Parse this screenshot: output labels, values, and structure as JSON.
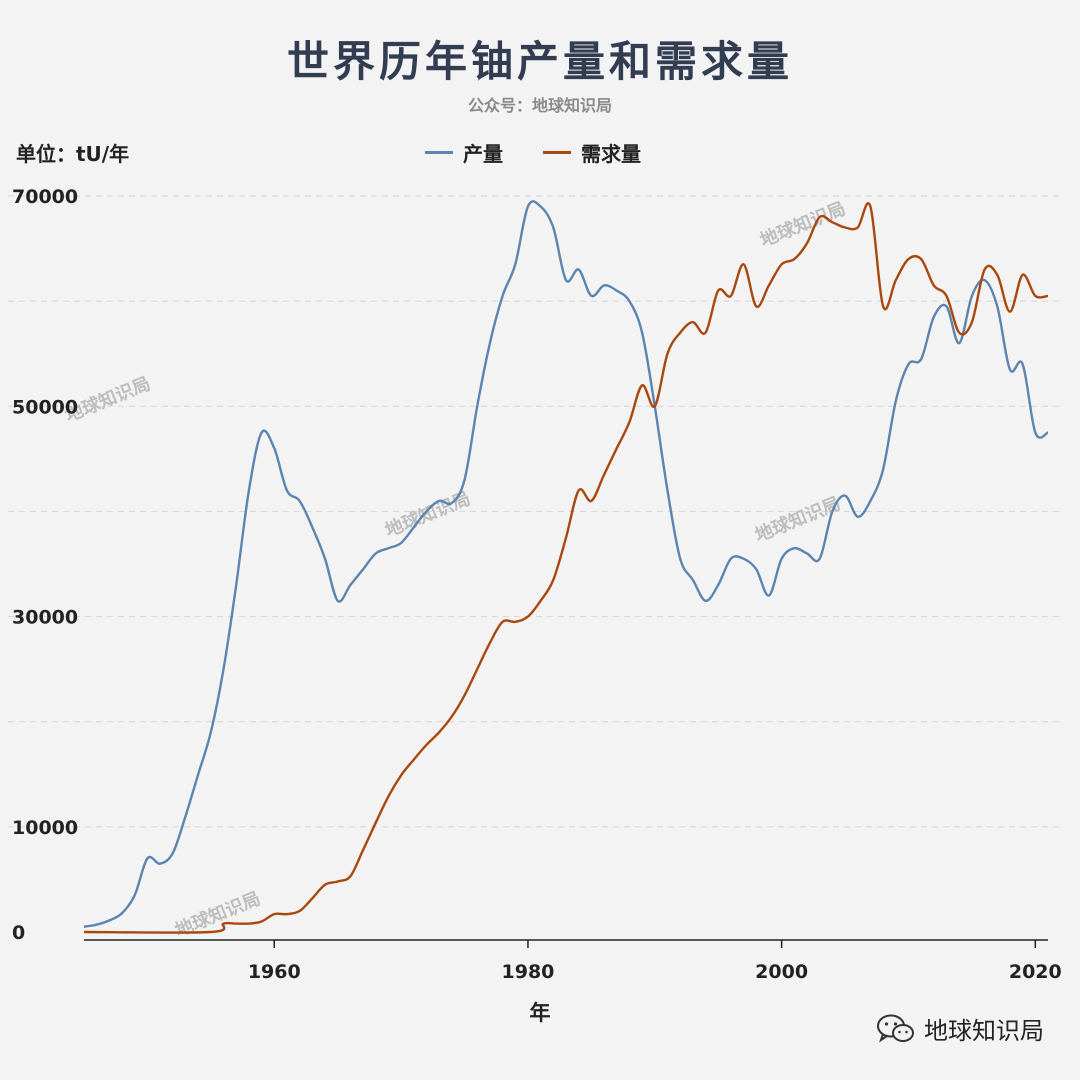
{
  "header": {
    "title": "世界历年铀产量和需求量",
    "subtitle": "公众号：地球知识局",
    "unit": "单位：tU/年"
  },
  "legend": [
    {
      "name": "产量",
      "color": "#5b85b0"
    },
    {
      "name": "需求量",
      "color": "#a8480f"
    }
  ],
  "watermark": "地球知识局",
  "footer": {
    "brand": "地球知识局",
    "icon": "wechat-icon"
  },
  "chart_data": {
    "type": "line",
    "title": "世界历年铀产量和需求量",
    "xlabel": "年",
    "ylabel": "单位：tU/年",
    "xlim": [
      1945,
      2021
    ],
    "ylim": [
      0,
      70000
    ],
    "grid": true,
    "legend_position": "top-center",
    "x_ticks": [
      1960,
      1980,
      2000,
      2020
    ],
    "y_ticks": [
      0,
      10000,
      30000,
      50000,
      70000
    ],
    "series": [
      {
        "name": "产量",
        "color": "#5b85b0",
        "points": [
          [
            1945,
            500
          ],
          [
            1946,
            700
          ],
          [
            1947,
            1100
          ],
          [
            1948,
            1800
          ],
          [
            1949,
            3500
          ],
          [
            1950,
            7000
          ],
          [
            1951,
            6500
          ],
          [
            1952,
            7500
          ],
          [
            1953,
            11000
          ],
          [
            1954,
            15000
          ],
          [
            1955,
            19000
          ],
          [
            1956,
            25000
          ],
          [
            1957,
            33000
          ],
          [
            1958,
            42000
          ],
          [
            1959,
            47500
          ],
          [
            1960,
            46000
          ],
          [
            1961,
            42000
          ],
          [
            1962,
            41000
          ],
          [
            1963,
            38500
          ],
          [
            1964,
            35500
          ],
          [
            1965,
            31500
          ],
          [
            1966,
            33000
          ],
          [
            1967,
            34500
          ],
          [
            1968,
            36000
          ],
          [
            1969,
            36500
          ],
          [
            1970,
            37000
          ],
          [
            1971,
            38500
          ],
          [
            1972,
            40000
          ],
          [
            1973,
            41000
          ],
          [
            1974,
            40800
          ],
          [
            1975,
            43000
          ],
          [
            1976,
            50000
          ],
          [
            1977,
            56000
          ],
          [
            1978,
            60500
          ],
          [
            1979,
            63500
          ],
          [
            1980,
            69000
          ],
          [
            1981,
            69000
          ],
          [
            1982,
            67000
          ],
          [
            1983,
            62000
          ],
          [
            1984,
            63000
          ],
          [
            1985,
            60500
          ],
          [
            1986,
            61500
          ],
          [
            1987,
            61000
          ],
          [
            1988,
            60000
          ],
          [
            1989,
            57000
          ],
          [
            1990,
            50000
          ],
          [
            1991,
            42000
          ],
          [
            1992,
            35500
          ],
          [
            1993,
            33500
          ],
          [
            1994,
            31500
          ],
          [
            1995,
            33000
          ],
          [
            1996,
            35500
          ],
          [
            1997,
            35500
          ],
          [
            1998,
            34500
          ],
          [
            1999,
            32000
          ],
          [
            2000,
            35500
          ],
          [
            2001,
            36500
          ],
          [
            2002,
            36000
          ],
          [
            2003,
            35500
          ],
          [
            2004,
            40000
          ],
          [
            2005,
            41500
          ],
          [
            2006,
            39500
          ],
          [
            2007,
            41000
          ],
          [
            2008,
            44000
          ],
          [
            2009,
            50500
          ],
          [
            2010,
            54000
          ],
          [
            2011,
            54500
          ],
          [
            2012,
            58500
          ],
          [
            2013,
            59500
          ],
          [
            2014,
            56000
          ],
          [
            2015,
            60500
          ],
          [
            2016,
            62000
          ],
          [
            2017,
            59500
          ],
          [
            2018,
            53500
          ],
          [
            2019,
            54000
          ],
          [
            2020,
            47500
          ],
          [
            2021,
            47500
          ]
        ]
      },
      {
        "name": "需求量",
        "color": "#a8480f",
        "points": [
          [
            1945,
            0
          ],
          [
            1955,
            0
          ],
          [
            1956,
            800
          ],
          [
            1957,
            800
          ],
          [
            1958,
            800
          ],
          [
            1959,
            1000
          ],
          [
            1960,
            1700
          ],
          [
            1961,
            1700
          ],
          [
            1962,
            2000
          ],
          [
            1963,
            3200
          ],
          [
            1964,
            4500
          ],
          [
            1965,
            4800
          ],
          [
            1966,
            5300
          ],
          [
            1967,
            7800
          ],
          [
            1968,
            10400
          ],
          [
            1969,
            12900
          ],
          [
            1970,
            14900
          ],
          [
            1971,
            16400
          ],
          [
            1972,
            17800
          ],
          [
            1973,
            19000
          ],
          [
            1974,
            20500
          ],
          [
            1975,
            22500
          ],
          [
            1976,
            25000
          ],
          [
            1977,
            27500
          ],
          [
            1978,
            29500
          ],
          [
            1979,
            29500
          ],
          [
            1980,
            30000
          ],
          [
            1981,
            31500
          ],
          [
            1982,
            33500
          ],
          [
            1983,
            37500
          ],
          [
            1984,
            42000
          ],
          [
            1985,
            41000
          ],
          [
            1986,
            43500
          ],
          [
            1987,
            46000
          ],
          [
            1988,
            48500
          ],
          [
            1989,
            52000
          ],
          [
            1990,
            50000
          ],
          [
            1991,
            55000
          ],
          [
            1992,
            57000
          ],
          [
            1993,
            58000
          ],
          [
            1994,
            57000
          ],
          [
            1995,
            61000
          ],
          [
            1996,
            60500
          ],
          [
            1997,
            63500
          ],
          [
            1998,
            59500
          ],
          [
            1999,
            61500
          ],
          [
            2000,
            63500
          ],
          [
            2001,
            64000
          ],
          [
            2002,
            65500
          ],
          [
            2003,
            68000
          ],
          [
            2004,
            67500
          ],
          [
            2005,
            67000
          ],
          [
            2006,
            67000
          ],
          [
            2007,
            69000
          ],
          [
            2008,
            59500
          ],
          [
            2009,
            62000
          ],
          [
            2010,
            64000
          ],
          [
            2011,
            64000
          ],
          [
            2012,
            61500
          ],
          [
            2013,
            60500
          ],
          [
            2014,
            57000
          ],
          [
            2015,
            58000
          ],
          [
            2016,
            63000
          ],
          [
            2017,
            62500
          ],
          [
            2018,
            59000
          ],
          [
            2019,
            62500
          ],
          [
            2020,
            60500
          ],
          [
            2021,
            60500
          ]
        ]
      }
    ]
  }
}
